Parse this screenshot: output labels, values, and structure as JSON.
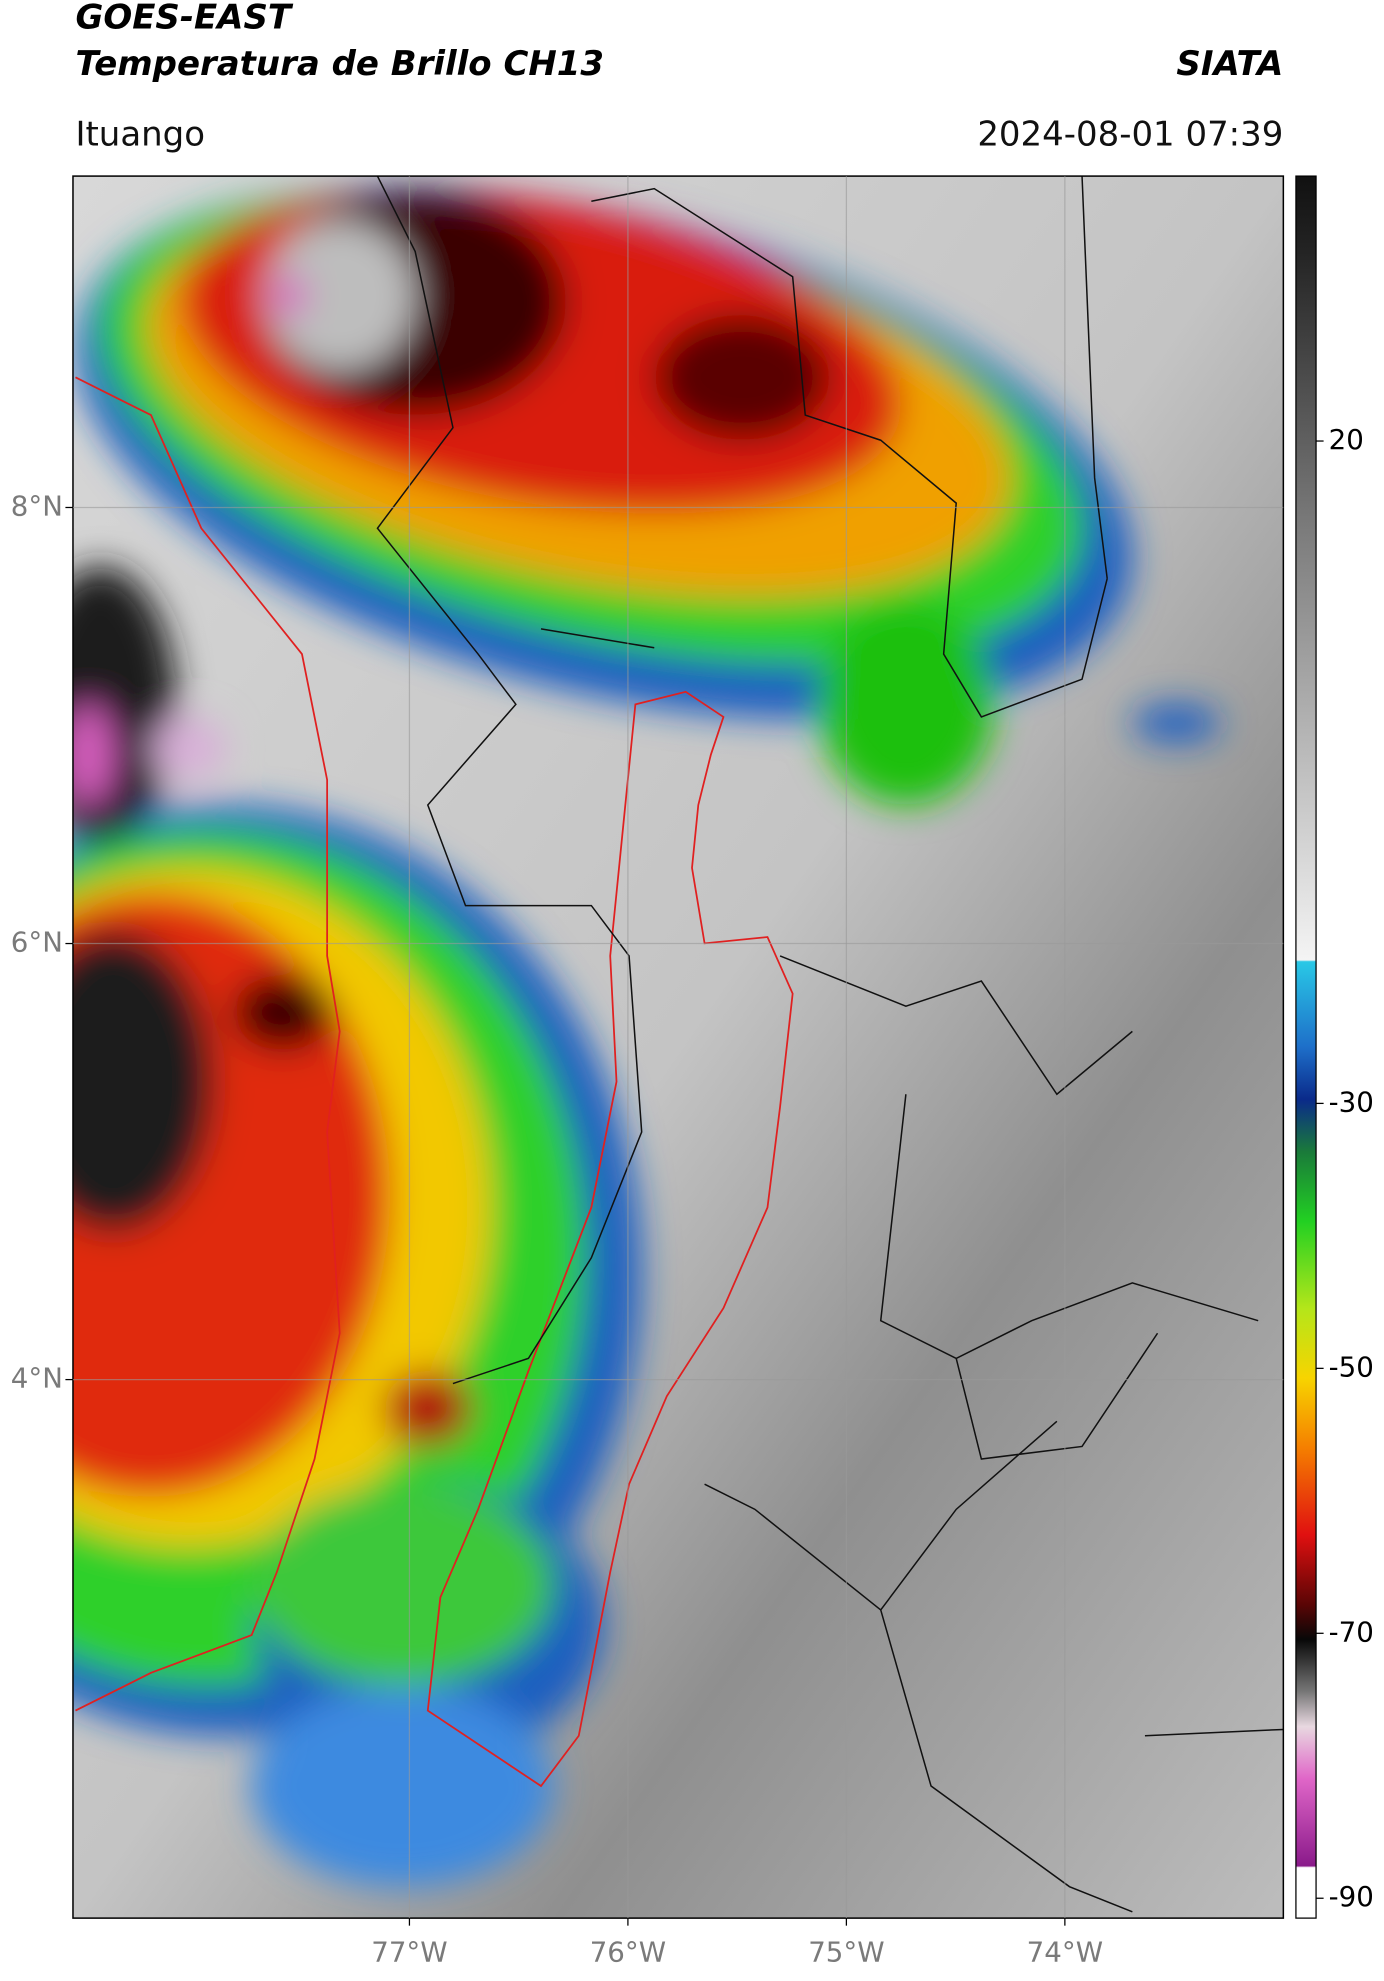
{
  "header": {
    "title_line1": "GOES-EAST",
    "title_line2": "Temperatura de Brillo CH13",
    "source": "SIATA",
    "region": "Ituango",
    "datetime": "2024-08-01 07:39"
  },
  "map": {
    "xlim": [
      -78.54,
      -73.0
    ],
    "ylim": [
      1.53,
      9.52
    ],
    "xticks": [
      {
        "value": -77,
        "label": "77°W"
      },
      {
        "value": -76,
        "label": "76°W"
      },
      {
        "value": -75,
        "label": "75°W"
      },
      {
        "value": -74,
        "label": "74°W"
      }
    ],
    "yticks": [
      {
        "value": 8,
        "label": "8°N"
      },
      {
        "value": 6,
        "label": "6°N"
      },
      {
        "value": 4,
        "label": "4°N"
      }
    ],
    "grid": true
  },
  "colorbar": {
    "lim": [
      -91.5,
      40
    ],
    "ticks": [
      20,
      -30,
      -50,
      -70,
      -90
    ]
  }
}
